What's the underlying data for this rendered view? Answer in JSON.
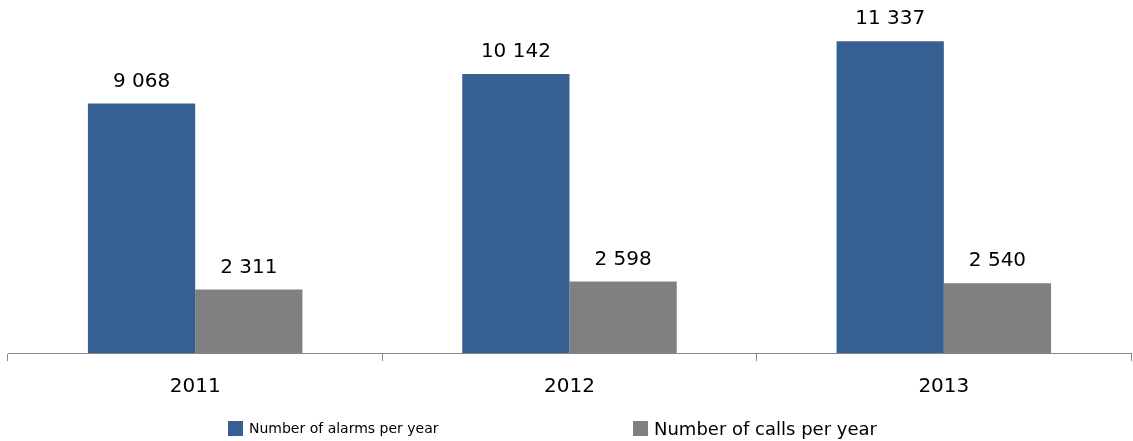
{
  "chart_data": {
    "type": "bar",
    "categories": [
      "2011",
      "2012",
      "2013"
    ],
    "series": [
      {
        "name": "Number of alarms per year",
        "color": "#376092",
        "values": [
          9068,
          10142,
          11337
        ],
        "value_labels": [
          "9 068",
          "10 142",
          "11 337"
        ]
      },
      {
        "name": "Number of calls per year",
        "color": "#808080",
        "values": [
          2311,
          2598,
          2540
        ],
        "value_labels": [
          "2 311",
          "2 598",
          "2 540"
        ]
      }
    ],
    "legend": "bottom"
  }
}
